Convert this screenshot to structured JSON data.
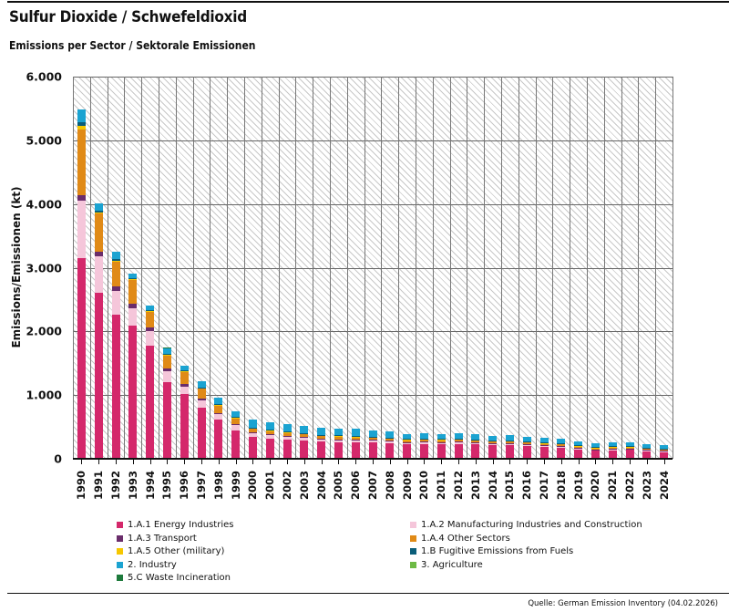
{
  "header": {
    "title": "Sulfur Dioxide / Schwefeldioxid",
    "subtitle": "Emissions per Sector / Sektorale Emissionen"
  },
  "footer": {
    "source": "Quelle: German Emission Inventory (04.02.2026)"
  },
  "chart_data": {
    "type": "bar",
    "stacked": true,
    "title": "Sulfur Dioxide / Schwefeldioxid",
    "subtitle": "Emissions per Sector / Sektorale Emissionen",
    "xlabel": "",
    "ylabel": "Emissions/Emissionen (kt)",
    "ylim": [
      0,
      6000
    ],
    "yticks": [
      "0",
      "1.000",
      "2.000",
      "3.000",
      "4.000",
      "5.000",
      "6.000"
    ],
    "ytick_values": [
      0,
      1000,
      2000,
      3000,
      4000,
      5000,
      6000
    ],
    "grid": true,
    "legend_position": "bottom",
    "categories": [
      "1990",
      "1991",
      "1992",
      "1993",
      "1994",
      "1995",
      "1996",
      "1997",
      "1998",
      "1999",
      "2000",
      "2001",
      "2002",
      "2003",
      "2004",
      "2005",
      "2006",
      "2007",
      "2008",
      "2009",
      "2010",
      "2011",
      "2012",
      "2013",
      "2014",
      "2015",
      "2016",
      "2017",
      "2018",
      "2019",
      "2020",
      "2021",
      "2022",
      "2023",
      "2024"
    ],
    "series": [
      {
        "name": "1.A.1 Energy Industries",
        "color": "#d4286b",
        "values": [
          3150,
          2610,
          2260,
          2090,
          1780,
          1210,
          1010,
          800,
          610,
          450,
          340,
          320,
          300,
          290,
          270,
          265,
          260,
          255,
          245,
          230,
          235,
          230,
          235,
          225,
          215,
          215,
          200,
          185,
          175,
          150,
          125,
          135,
          140,
          120,
          105
        ]
      },
      {
        "name": "1.A.2 Manufacturing Industries and Construction",
        "color": "#f5c6da",
        "values": [
          900,
          570,
          370,
          280,
          220,
          160,
          120,
          110,
          90,
          80,
          60,
          55,
          50,
          45,
          40,
          38,
          36,
          35,
          33,
          30,
          32,
          30,
          30,
          29,
          28,
          28,
          27,
          26,
          25,
          24,
          22,
          23,
          22,
          21,
          20
        ]
      },
      {
        "name": "1.A.3 Transport",
        "color": "#6a2d6b",
        "values": [
          90,
          70,
          70,
          60,
          60,
          50,
          40,
          30,
          20,
          15,
          10,
          8,
          6,
          5,
          5,
          5,
          4,
          4,
          4,
          3,
          3,
          3,
          3,
          3,
          3,
          3,
          3,
          3,
          3,
          2,
          2,
          2,
          2,
          2,
          2
        ]
      },
      {
        "name": "1.A.4 Other Sectors",
        "color": "#e08a17",
        "values": [
          1030,
          600,
          400,
          380,
          260,
          210,
          200,
          170,
          120,
          100,
          70,
          65,
          60,
          55,
          50,
          48,
          47,
          46,
          44,
          40,
          42,
          40,
          39,
          38,
          36,
          36,
          35,
          34,
          32,
          30,
          28,
          28,
          26,
          24,
          22
        ]
      },
      {
        "name": "1.A.5 Other (military)",
        "color": "#f6c700",
        "values": [
          60,
          15,
          10,
          8,
          6,
          5,
          4,
          3,
          3,
          2,
          2,
          2,
          2,
          2,
          2,
          2,
          2,
          2,
          2,
          2,
          2,
          2,
          2,
          2,
          2,
          2,
          2,
          2,
          2,
          2,
          2,
          2,
          2,
          2,
          2
        ]
      },
      {
        "name": "1.B Fugitive Emissions from Fuels",
        "color": "#0b5e7a",
        "values": [
          50,
          30,
          25,
          20,
          15,
          15,
          12,
          10,
          10,
          8,
          8,
          8,
          8,
          8,
          8,
          8,
          8,
          8,
          7,
          7,
          7,
          7,
          7,
          7,
          7,
          7,
          7,
          7,
          7,
          7,
          6,
          6,
          6,
          6,
          6
        ]
      },
      {
        "name": "2. Industry",
        "color": "#1ba3d1",
        "values": [
          200,
          110,
          110,
          70,
          70,
          90,
          80,
          100,
          100,
          90,
          120,
          120,
          120,
          110,
          110,
          100,
          110,
          100,
          90,
          80,
          80,
          80,
          80,
          80,
          70,
          80,
          70,
          70,
          70,
          60,
          60,
          60,
          60,
          60,
          60
        ]
      },
      {
        "name": "3. Agriculture",
        "color": "#6dba45",
        "values": [
          0,
          0,
          0,
          0,
          0,
          0,
          0,
          0,
          0,
          0,
          0,
          0,
          0,
          0,
          0,
          0,
          0,
          0,
          0,
          0,
          0,
          0,
          0,
          0,
          0,
          0,
          0,
          0,
          0,
          0,
          0,
          0,
          0,
          0,
          0
        ]
      },
      {
        "name": "5.C Waste Incineration",
        "color": "#1e7a3c",
        "values": [
          1,
          1,
          1,
          1,
          1,
          1,
          1,
          1,
          1,
          1,
          1,
          1,
          1,
          1,
          1,
          1,
          1,
          1,
          1,
          1,
          1,
          1,
          1,
          1,
          1,
          1,
          1,
          1,
          1,
          1,
          1,
          1,
          1,
          1,
          1
        ]
      }
    ]
  },
  "legend": {
    "items": [
      {
        "label": "1.A.1 Energy Industries",
        "color": "#d4286b"
      },
      {
        "label": "1.A.2 Manufacturing Industries and Construction",
        "color": "#f5c6da"
      },
      {
        "label": "1.A.3 Transport",
        "color": "#6a2d6b"
      },
      {
        "label": "1.A.4 Other Sectors",
        "color": "#e08a17"
      },
      {
        "label": "1.A.5 Other (military)",
        "color": "#f6c700"
      },
      {
        "label": "1.B Fugitive Emissions from Fuels",
        "color": "#0b5e7a"
      },
      {
        "label": "2. Industry",
        "color": "#1ba3d1"
      },
      {
        "label": "3. Agriculture",
        "color": "#6dba45"
      },
      {
        "label": "5.C Waste Incineration",
        "color": "#1e7a3c"
      }
    ]
  }
}
